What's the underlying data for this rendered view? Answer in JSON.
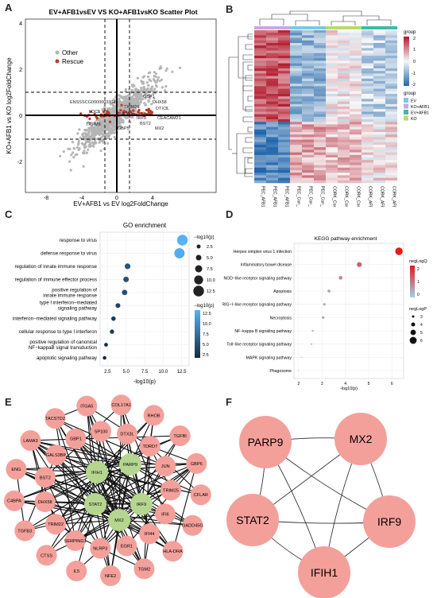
{
  "panels": {
    "A": {
      "letter": "A",
      "title": "EV+AFB1vsEV VS KO+AFB1vsKO Scatter Plot",
      "xlabel": "EV+AFB1 vs EV log2FoldChange",
      "ylabel": "KO+AFB1 vs KO log2FoldChange",
      "legend": [
        "Other",
        "Rescue"
      ],
      "xticks": [
        "-8",
        "-4",
        "0",
        "4"
      ],
      "yticks": [
        "4",
        "2",
        "0",
        "-2"
      ],
      "labels": [
        "ENSSSCG00000033049",
        "LOC1",
        "TRPM8",
        "GBP5",
        "BST2",
        "MX2",
        "CEACAM21",
        "DHX58",
        "GBP1",
        "IRF9",
        "DTX3L",
        "TRIM25",
        "SP100"
      ]
    },
    "B": {
      "letter": "B",
      "legend_group_title": "group",
      "legend_ticks": [
        "2",
        "1",
        "0",
        "-1",
        "-2"
      ],
      "legend_group_title2": "group",
      "groups": [
        {
          "name": "EV",
          "color": "#7ec8e3"
        },
        {
          "name": "KO+AFB1",
          "color": "#c9a7e8"
        },
        {
          "name": "EV+AFB1",
          "color": "#3fb8a8"
        },
        {
          "name": "KO",
          "color": "#b8d96e"
        }
      ],
      "samples": [
        "PEC_AFB1_2",
        "PEC_AFB1_1",
        "PEC_AFB1_3",
        "PEC_Con_1",
        "PEC_Con_2",
        "PEC_Con_3",
        "CORK_Control_3",
        "CORK_Control_1",
        "CORK_Control_2",
        "CORK_AFB1_3",
        "CORK_AFB1_1",
        "CORK_AFB1_2"
      ]
    },
    "C": {
      "letter": "C",
      "chart_data": {
        "type": "scatter",
        "title": "GO enrichment",
        "xlabel": "-log10(p)",
        "xlim": [
          1.5,
          13.5
        ],
        "xticks": [
          "2.5",
          "5.0",
          "7.5",
          "10.0",
          "12.5"
        ],
        "categories": [
          "response to virus",
          "defense response to virus",
          "regulation of innate immune response",
          "regulation of immune effector process",
          "positive regulation of innate immune response",
          "type I interferon-mediated signaling pathway",
          "interferon-mediated signaling pathway",
          "cellular response to type I interferon",
          "positive regulation of canonical NF-kappaB signal transduction",
          "apoptotic signaling pathway"
        ],
        "labels_display": [
          [
            "response to virus"
          ],
          [
            "defense response to virus"
          ],
          [
            "regulation of innate immune response"
          ],
          [
            "regulation of immune effector process"
          ],
          [
            "positive regulation of",
            "innate immune response"
          ],
          [
            "type I interferon−mediated",
            "signaling pathway"
          ],
          [
            "interferon−mediated signaling pathway"
          ],
          [
            "cellular response to type I interferon"
          ],
          [
            "positive regulation of canonical",
            "NF−kappaB signal transduction"
          ],
          [
            "apoptotic signaling pathway"
          ]
        ],
        "values": [
          12.6,
          12.2,
          5.2,
          5.0,
          4.8,
          3.9,
          3.3,
          3.1,
          2.3,
          2.1
        ],
        "size_legend_title": "−log10(p)",
        "size_legend": [
          "2.5",
          "5.0",
          "7.5",
          "10.0",
          "12.5"
        ],
        "color_legend_title": "−log10(p)",
        "color_legend_ticks": [
          "12.5",
          "10.0",
          "7.5",
          "5.0",
          "2.5"
        ]
      }
    },
    "D": {
      "letter": "D",
      "chart_data": {
        "type": "scatter",
        "title": "KEGG pathway enrichment",
        "xlabel": "-log10(p)",
        "xlim": [
          1.8,
          6.5
        ],
        "xticks": [
          "2",
          "3",
          "4",
          "5",
          "6"
        ],
        "categories": [
          "Herpes simplex virus 1 infection",
          "Inflammatory bowel disease",
          "NOD−like receptor signaling pathway",
          "Apoptosis",
          "RIG−I−like receptor signaling pathway",
          "Necroptosis",
          "NF−kappa B signaling pathway",
          "Toll−like receptor signaling pathway",
          "MAPK signaling pathway",
          "Phagosome"
        ],
        "values": [
          6.3,
          4.6,
          3.8,
          3.3,
          3.1,
          3.05,
          2.6,
          2.55,
          2.1,
          2.0
        ],
        "color_legend_title": "negLogQ",
        "color_legend_ticks": [
          "2",
          "1",
          "0"
        ],
        "size_legend_title": "negLogP",
        "size_legend": [
          "3",
          "4",
          "5",
          "6"
        ]
      }
    },
    "E": {
      "letter": "E",
      "hub_nodes": [
        "IFIH1",
        "PARP9",
        "STAT2",
        "IRF9",
        "MX2"
      ],
      "outer_nodes": [
        "COL17A1",
        "RHOB",
        "TGFBI",
        "GBP6",
        "CFLAR",
        "GADD45G",
        "HLA-DRA",
        "TGM2",
        "NFE2",
        "IL5",
        "CTSS",
        "TGFB3",
        "C4BPA",
        "ENG",
        "LAMA3",
        "TACSTD2",
        "ITGA5"
      ],
      "inner_nodes": [
        "SP100",
        "DTX3L",
        "TDRD7",
        "JUN",
        "TRIM25",
        "IFI6",
        "IFI44",
        "EGR1",
        "NLRP3",
        "SERPING1",
        "TRIM22",
        "DHX58",
        "BST2",
        "GALS3BP",
        "GBP1"
      ]
    },
    "F": {
      "letter": "F",
      "nodes": [
        "PARP9",
        "MX2",
        "STAT2",
        "IRF9",
        "IFIH1"
      ]
    }
  }
}
